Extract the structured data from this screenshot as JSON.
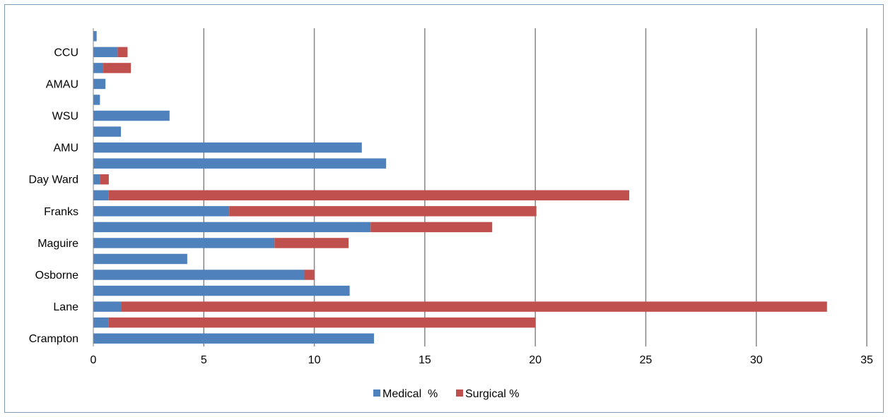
{
  "chart_data": {
    "type": "bar",
    "orientation": "horizontal",
    "stacked": true,
    "categories": [
      "Crampton",
      "",
      "Lane",
      "",
      "Osborne",
      "",
      "Maguire",
      "",
      "Franks",
      "",
      "Day Ward",
      "",
      "AMU",
      "",
      "WSU",
      "",
      "AMAU",
      "",
      "CCU",
      ""
    ],
    "series": [
      {
        "name": "Medical  %",
        "color": "#4f81bd",
        "values": [
          12.7,
          0.7,
          1.25,
          11.6,
          9.55,
          4.25,
          8.2,
          12.55,
          6.15,
          0.7,
          0.3,
          13.25,
          12.15,
          1.25,
          3.45,
          0.3,
          0.55,
          0.45,
          1.1,
          0.15
        ]
      },
      {
        "name": "Surgical %",
        "color": "#c0504d",
        "values": [
          0,
          19.3,
          31.95,
          0,
          0.45,
          0,
          3.35,
          5.5,
          13.9,
          23.55,
          0.4,
          0,
          0,
          0,
          0,
          0,
          0,
          1.25,
          0.45,
          0
        ]
      }
    ],
    "xlim": [
      0,
      35
    ],
    "xticks": [
      "0",
      "5",
      "10",
      "15",
      "20",
      "25",
      "30",
      "35"
    ],
    "title": "",
    "xlabel": "",
    "ylabel": "",
    "grid": "vertical",
    "legend_position": "bottom"
  }
}
